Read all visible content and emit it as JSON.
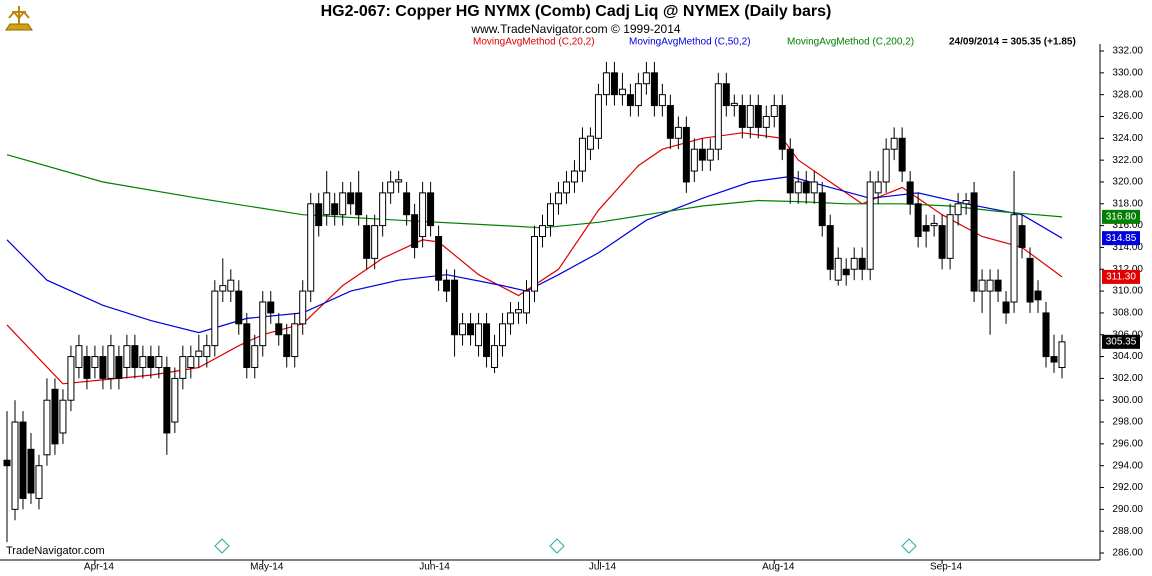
{
  "chart_data": {
    "type": "candlestick",
    "title": "HG2-067:  Copper HG NYMX (Comb) Cadj Liq @ NYMEX  (Daily bars)",
    "subtitle": "www.TradeNavigator.com © 1999-2014",
    "watermark": "TradeNavigator.com",
    "last_bar_label": "24/09/2014 = 305.35 (+1.85)",
    "categories": [
      null,
      null,
      null,
      null,
      null,
      null,
      null,
      null,
      null,
      null,
      null,
      "Apr-14",
      null,
      null,
      null,
      null,
      null,
      null,
      null,
      null,
      null,
      null,
      null,
      null,
      null,
      null,
      null,
      null,
      null,
      null,
      null,
      null,
      "May-14",
      null,
      null,
      null,
      null,
      null,
      null,
      null,
      null,
      null,
      null,
      null,
      null,
      null,
      null,
      null,
      null,
      null,
      null,
      null,
      null,
      "Jun-14",
      null,
      null,
      null,
      null,
      null,
      null,
      null,
      null,
      null,
      null,
      null,
      null,
      null,
      null,
      null,
      null,
      null,
      null,
      null,
      null,
      "Jul-14",
      null,
      null,
      null,
      null,
      null,
      null,
      null,
      null,
      null,
      null,
      null,
      null,
      null,
      null,
      null,
      null,
      null,
      null,
      null,
      null,
      null,
      "Aug-14",
      null,
      null,
      null,
      null,
      null,
      null,
      null,
      null,
      null,
      null,
      null,
      null,
      null,
      null,
      null,
      null,
      null,
      null,
      null,
      null,
      "Sep-14",
      null,
      null,
      null,
      null,
      null,
      null,
      null,
      null,
      null,
      null,
      null,
      null,
      null,
      null,
      null
    ],
    "open": [
      294.5,
      290,
      298,
      295.5,
      291,
      295,
      301,
      297,
      300,
      303,
      304,
      303,
      304,
      302,
      304,
      303,
      305,
      303,
      304,
      303,
      303,
      298,
      302,
      303,
      304,
      304,
      305,
      310,
      310,
      310,
      307,
      303,
      305,
      309,
      307,
      306,
      304,
      307,
      310,
      318,
      317,
      318,
      317,
      319,
      319,
      316,
      313,
      316,
      319,
      320,
      319,
      317,
      315,
      319,
      315,
      311,
      311,
      306,
      307,
      305,
      307,
      303,
      305,
      307,
      308,
      308,
      310,
      315,
      316,
      318,
      319,
      320,
      321,
      323,
      324,
      328,
      330,
      328,
      328,
      327,
      329,
      330,
      327,
      327,
      324,
      325,
      321,
      323,
      322,
      323,
      329,
      327,
      327,
      325,
      327,
      325,
      326,
      327,
      323,
      319,
      320,
      319,
      319,
      316,
      311,
      312,
      312,
      313,
      312,
      319,
      320,
      323,
      324,
      320,
      318,
      316,
      316,
      316,
      313,
      317,
      318,
      319,
      310,
      310,
      311,
      309,
      309,
      316,
      313,
      310,
      308,
      304,
      303
    ],
    "high": [
      299,
      300,
      299,
      297,
      295,
      302,
      302,
      301,
      305,
      306,
      305,
      305,
      305,
      306,
      305,
      306,
      306,
      305,
      305,
      305,
      304,
      303,
      305,
      305,
      306,
      306,
      311,
      313,
      312,
      311,
      308,
      306,
      310,
      310,
      308,
      307,
      308,
      311,
      319,
      319,
      321,
      319,
      320,
      320,
      321,
      317,
      317,
      320,
      321,
      321,
      320,
      318,
      320,
      320,
      316,
      312,
      312,
      308,
      308,
      308,
      308,
      306,
      308,
      309,
      309,
      311,
      316,
      317,
      319,
      320,
      321,
      322,
      325,
      325,
      329,
      331,
      331,
      330,
      329,
      330,
      331,
      331,
      329,
      328,
      326,
      326,
      324,
      324,
      324,
      330,
      330,
      328,
      328,
      328,
      328,
      327,
      328,
      328,
      324,
      321,
      321,
      321,
      320,
      317,
      314,
      313,
      314,
      314,
      321,
      321,
      324,
      325,
      325,
      321,
      319,
      317,
      317,
      317,
      318,
      319,
      319,
      320,
      312,
      312,
      312,
      310,
      321,
      317,
      314,
      311,
      309,
      306,
      306
    ],
    "low": [
      287,
      289,
      290,
      290.5,
      290,
      294,
      295,
      296,
      299,
      302,
      301,
      302,
      301,
      301,
      301,
      302,
      302,
      302,
      302,
      302,
      295,
      297,
      301,
      302,
      303,
      303,
      304,
      309,
      309,
      306,
      302,
      302,
      304,
      307,
      305,
      303,
      303,
      306,
      309,
      315,
      316,
      316,
      316,
      317,
      316,
      312,
      312,
      315,
      318,
      319,
      316,
      313,
      314,
      315,
      310,
      309,
      304,
      305,
      305,
      304,
      303,
      302.5,
      304,
      306,
      307,
      307,
      309,
      314,
      315,
      317,
      318,
      319,
      320,
      322,
      323,
      327,
      327,
      327,
      326,
      326,
      328,
      326,
      326,
      323,
      323,
      319,
      320,
      321,
      321,
      322,
      326,
      326,
      324,
      324,
      324,
      324,
      325,
      322,
      318,
      318,
      318,
      318,
      315,
      311,
      310.5,
      310.5,
      311,
      311,
      311,
      318,
      319,
      322,
      320,
      317,
      314,
      314,
      315,
      312,
      312,
      316,
      317,
      309,
      308,
      306,
      309,
      307,
      308,
      313,
      308,
      308,
      303,
      302.5,
      302
    ],
    "close": [
      294,
      298,
      291,
      291.5,
      294,
      300,
      296,
      300,
      304,
      305,
      302,
      304,
      302,
      305,
      302,
      305,
      303,
      304,
      303,
      304,
      297,
      302,
      304,
      304,
      304.5,
      305,
      310,
      310.5,
      311,
      307,
      303,
      305,
      309,
      308,
      306,
      304,
      307,
      310,
      318,
      316,
      319,
      317,
      319,
      318,
      317,
      313,
      316,
      319,
      320,
      320.2,
      317,
      314,
      319,
      316,
      311,
      310,
      306,
      307,
      306,
      307,
      304,
      305,
      307,
      308,
      308.3,
      310,
      315,
      316,
      318,
      319,
      320,
      321,
      324,
      324.2,
      328,
      330,
      328,
      328.5,
      327,
      329,
      330,
      327,
      328,
      324,
      325,
      320,
      323,
      322,
      323,
      329,
      327,
      327.2,
      325,
      327,
      325,
      326,
      327,
      323,
      319,
      320,
      319,
      320,
      316,
      312,
      313,
      311.5,
      313,
      312,
      320,
      320,
      323,
      324,
      321,
      318,
      315,
      315.5,
      316.2,
      313,
      317,
      318,
      318.3,
      310,
      311,
      311,
      310,
      308,
      317,
      314,
      309,
      309.2,
      304,
      303.5,
      305.35
    ],
    "moving_averages": [
      {
        "name": "MovingAvgMethod (C,20,2)",
        "color": "#e00000",
        "x": [
          0,
          7,
          18,
          24,
          29,
          32,
          37,
          42,
          47,
          52,
          54,
          59,
          64,
          69,
          74,
          79,
          82,
          87,
          92,
          97,
          99,
          102,
          107,
          112,
          117,
          122,
          127,
          132
        ],
        "values": [
          306.9,
          301.5,
          302.3,
          303,
          305,
          306,
          307,
          310.5,
          313,
          314.7,
          314.5,
          311.5,
          309.6,
          312,
          317.4,
          321.5,
          323,
          324,
          324.5,
          324,
          322,
          320.5,
          318,
          319.5,
          317,
          315,
          314,
          311.3
        ],
        "value_labels": [
          null,
          null,
          null,
          null,
          null,
          null,
          null,
          null,
          null,
          null,
          null,
          null,
          null,
          null,
          null,
          null,
          null,
          null,
          null,
          null,
          null,
          null,
          null,
          null,
          null,
          null,
          null,
          "311.30"
        ]
      },
      {
        "name": "MovingAvgMethod (C,50,2)",
        "color": "#0000dd",
        "x": [
          0,
          5,
          12,
          18,
          24,
          30,
          37,
          43,
          49,
          55,
          62,
          65,
          69,
          74,
          80,
          87,
          93,
          98,
          103,
          108,
          114,
          120,
          127,
          132
        ],
        "values": [
          314.7,
          311,
          308.7,
          307.3,
          306.2,
          307.5,
          308,
          310,
          311,
          311.5,
          310.5,
          310,
          311.5,
          313.5,
          316.5,
          318.5,
          320,
          320.5,
          319.5,
          318.5,
          319,
          318,
          317,
          314.85
        ],
        "value_labels": [
          null,
          null,
          null,
          null,
          null,
          null,
          null,
          null,
          null,
          null,
          null,
          null,
          null,
          null,
          null,
          null,
          null,
          null,
          null,
          null,
          null,
          null,
          null,
          "314.85"
        ]
      },
      {
        "name": "MovingAvgMethod (C,200,2)",
        "color": "#008000",
        "x": [
          0,
          12,
          24,
          37,
          49,
          62,
          67,
          74,
          80,
          87,
          94,
          99,
          105,
          112,
          118,
          124,
          132
        ],
        "values": [
          322.5,
          320,
          318.5,
          317,
          316.5,
          316,
          315.8,
          316.3,
          317,
          317.8,
          318.3,
          318.2,
          318,
          318,
          317.8,
          317.3,
          316.8
        ],
        "value_labels": [
          null,
          null,
          null,
          null,
          null,
          null,
          null,
          null,
          null,
          null,
          null,
          null,
          null,
          null,
          null,
          null,
          "316.80"
        ]
      }
    ],
    "ylim": [
      286,
      332
    ],
    "yticks": [
      {
        "value": 286,
        "label": "286.00"
      },
      {
        "value": 288,
        "label": "288.00"
      },
      {
        "value": 290,
        "label": "290.00"
      },
      {
        "value": 292,
        "label": "292.00"
      },
      {
        "value": 294,
        "label": "294.00"
      },
      {
        "value": 296,
        "label": "296.00"
      },
      {
        "value": 298,
        "label": "298.00"
      },
      {
        "value": 300,
        "label": "300.00"
      },
      {
        "value": 302,
        "label": "302.00"
      },
      {
        "value": 304,
        "label": "304.00"
      },
      {
        "value": 306,
        "label": "306.00"
      },
      {
        "value": 308,
        "label": "308.00"
      },
      {
        "value": 310,
        "label": "310.00"
      },
      {
        "value": 312,
        "label": "312.00"
      },
      {
        "value": 314,
        "label": "314.00"
      },
      {
        "value": 316,
        "label": "316.00"
      },
      {
        "value": 318,
        "label": "318.00"
      },
      {
        "value": 320,
        "label": "320.00"
      },
      {
        "value": 322,
        "label": "322.00"
      },
      {
        "value": 324,
        "label": "324.00"
      },
      {
        "value": 326,
        "label": "326.00"
      },
      {
        "value": 328,
        "label": "328.00"
      },
      {
        "value": 330,
        "label": "330.00"
      },
      {
        "value": 332,
        "label": "332.00"
      }
    ],
    "up_color": "#ffffff",
    "down_color": "#000000"
  }
}
